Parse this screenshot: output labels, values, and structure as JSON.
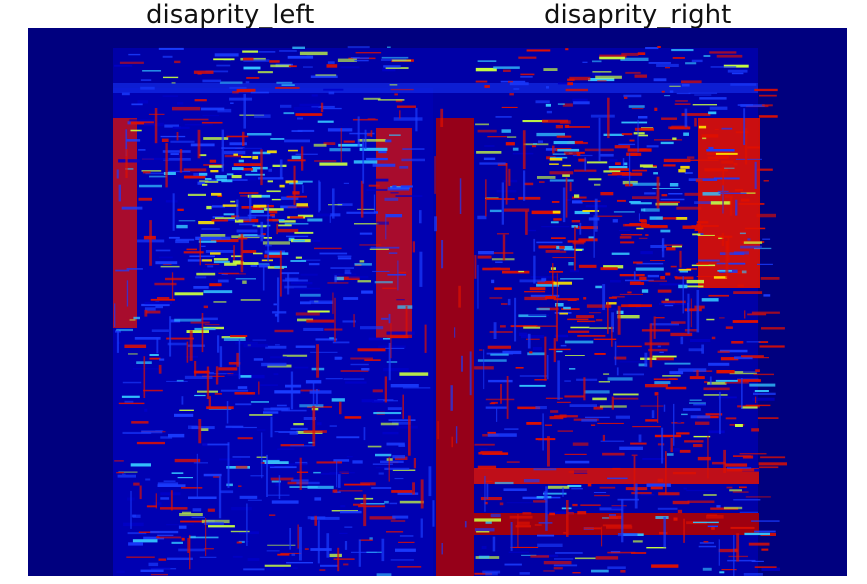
{
  "titles": {
    "left": "disaprity_left",
    "right": "disaprity_right"
  },
  "image": {
    "description_kind": "disparity-map",
    "colormap": "jet",
    "colors": {
      "background": "#00007f",
      "low": "#0000c8",
      "low_mid": "#1a3cff",
      "mid": "#33c4ff",
      "mid_high": "#c8ff40",
      "high_yellow": "#ffe600",
      "high": "#e01000",
      "very_high": "#b00000"
    }
  }
}
